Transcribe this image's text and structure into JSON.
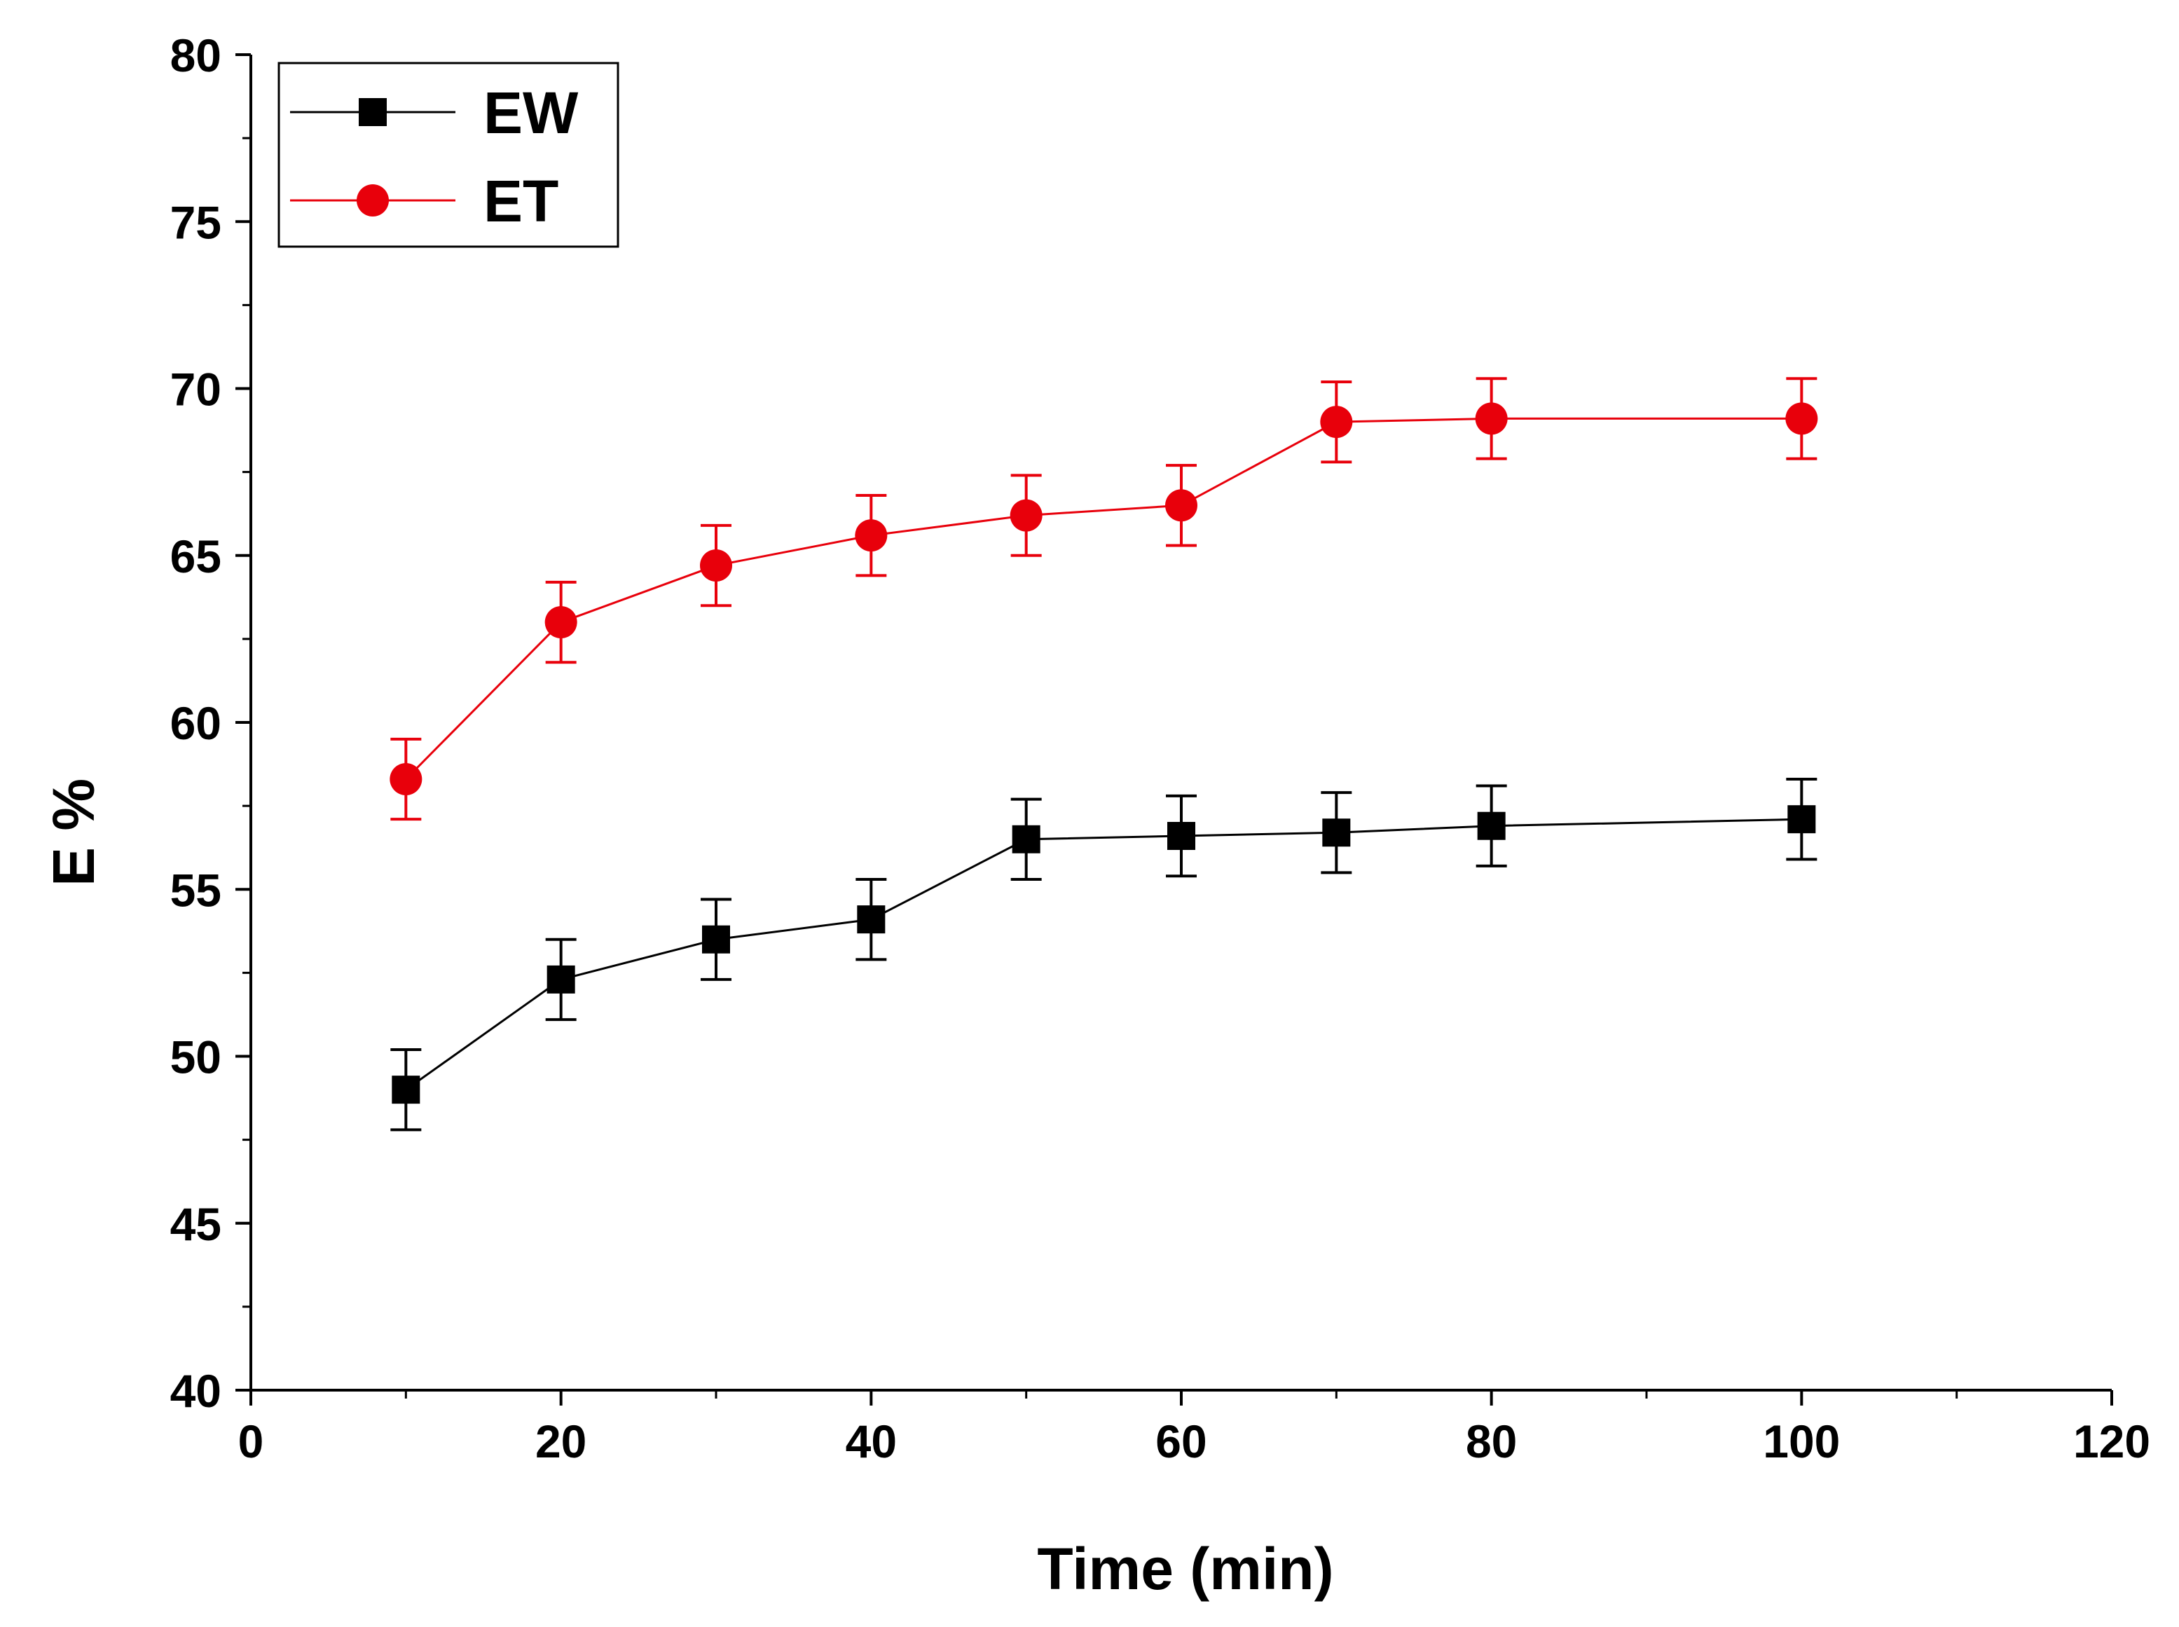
{
  "chart_data": {
    "type": "line",
    "title": "",
    "xlabel": "Time (min)",
    "ylabel": "E %",
    "xlim": [
      0,
      120
    ],
    "ylim": [
      40,
      80
    ],
    "xticks": [
      0,
      20,
      40,
      60,
      80,
      100,
      120
    ],
    "yticks": [
      40,
      45,
      50,
      55,
      60,
      65,
      70,
      75,
      80
    ],
    "grid": false,
    "legend_position": "top-left",
    "series": [
      {
        "name": "EW",
        "color": "#000000",
        "marker": "square",
        "x": [
          10,
          20,
          30,
          40,
          50,
          60,
          70,
          80,
          100
        ],
        "y": [
          49.0,
          52.3,
          53.5,
          54.1,
          56.5,
          56.6,
          56.7,
          56.9,
          57.1
        ],
        "error": [
          1.2,
          1.2,
          1.2,
          1.2,
          1.2,
          1.2,
          1.2,
          1.2,
          1.2
        ]
      },
      {
        "name": "ET",
        "color": "#e8000b",
        "marker": "circle",
        "x": [
          10,
          20,
          30,
          40,
          50,
          60,
          70,
          80,
          100
        ],
        "y": [
          58.3,
          63.0,
          64.7,
          65.6,
          66.2,
          66.5,
          69.0,
          69.1,
          69.1
        ],
        "error": [
          1.2,
          1.2,
          1.2,
          1.2,
          1.2,
          1.2,
          1.2,
          1.2,
          1.2
        ]
      }
    ]
  }
}
